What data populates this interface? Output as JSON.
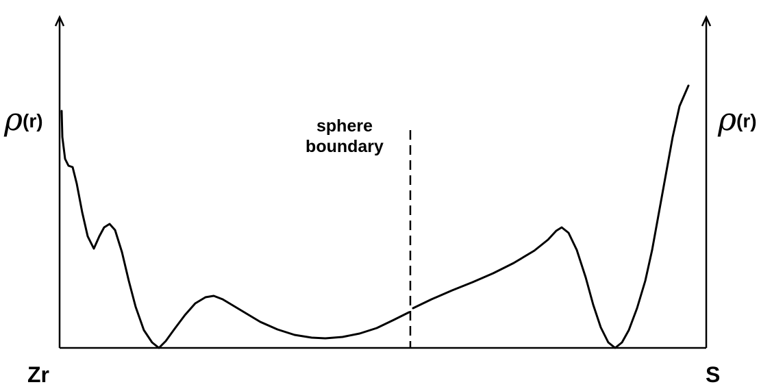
{
  "left_axis": {
    "symbol": "ρ",
    "argument": "(r)"
  },
  "right_axis": {
    "symbol": "ρ",
    "argument": "(r)"
  },
  "annotation": {
    "lines": [
      "sphere",
      "boundary"
    ]
  },
  "endpoints": {
    "left": "Zr",
    "right": "S"
  }
}
